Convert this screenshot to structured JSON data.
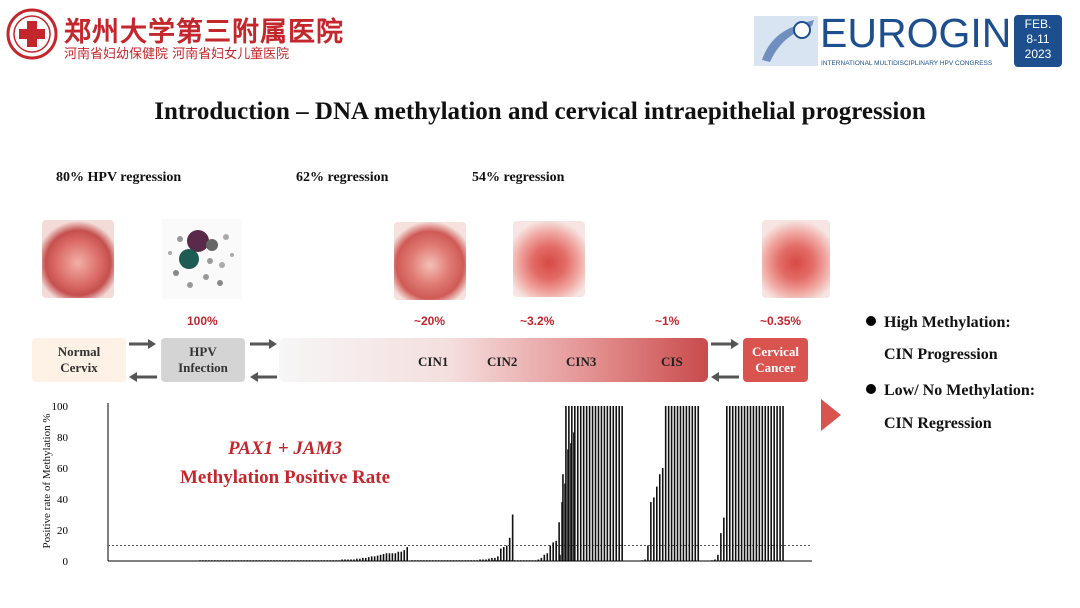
{
  "header": {
    "institution": "郑州大学第三附属医院",
    "institution_sub": "河南省妇幼保健院  河南省妇女儿童医院",
    "conference": "EUROGIN",
    "conference_sub": "INTERNATIONAL MULTIDISCIPLINARY HPV CONGRESS",
    "date_line1": "FEB.",
    "date_line2": "8-11",
    "date_line3": "2023"
  },
  "title": "Introduction – DNA methylation and cervical intraepithelial progression",
  "regressions": {
    "hpv": "80% HPV regression",
    "cin1": "62% regression",
    "cin2": "54% regression"
  },
  "progression_rates": {
    "hpv": "100%",
    "cin1": "~20%",
    "cin2": "~3.2%",
    "cis": "~1%",
    "cancer": "~0.35%"
  },
  "stages": {
    "normal": [
      "Normal",
      "Cervix"
    ],
    "hpv": [
      "HPV",
      "Infection"
    ],
    "cin1": "CIN1",
    "cin2": "CIN2",
    "cin3": "CIN3",
    "cis": "CIS",
    "cancer": [
      "Cervical",
      "Cancer"
    ]
  },
  "legend": {
    "high_label": "High Methylation:",
    "high_value": "CIN Progression",
    "low_label": "Low/ No Methylation:",
    "low_value": "CIN Regression"
  },
  "colors": {
    "accent_red": "#c3262b",
    "brand_blue": "#1d4f8f",
    "cancer_box": "#d9534f"
  },
  "chart_data": {
    "type": "bar",
    "title_line1": "PAX1 + JAM3",
    "title_line2": "Methylation  Positive Rate",
    "ylabel": "Positive rate of Methylation %",
    "yticks": [
      "100",
      "80",
      "60",
      "40",
      "20",
      "0"
    ],
    "ylim": [
      0,
      100
    ],
    "threshold": 10,
    "series": [
      {
        "group": "normal",
        "values": [
          0.5,
          0.5,
          0.5,
          0.5,
          0.5,
          0.5,
          0.5,
          0.5,
          0.5,
          0.5,
          0.5,
          0.5,
          0.5,
          0.5,
          0.5,
          0.5,
          0.5,
          0.5,
          0.5,
          0.5,
          0.5,
          0.5,
          0.5,
          0.5,
          0.5,
          0.5,
          0.5,
          0.5,
          0.5,
          0.5,
          0.5,
          0.5,
          0.5,
          0.5,
          0.5,
          0.5,
          0.5,
          0.5,
          0.5,
          0.5,
          0.5,
          0.5,
          0.5,
          0.5,
          0.5,
          0.5,
          0.5,
          0.5,
          1,
          1,
          1,
          1,
          1,
          1.5,
          1.5,
          2,
          2,
          2.5,
          3,
          3,
          3.5,
          4,
          4.5,
          5,
          5,
          5,
          5,
          6,
          6,
          7,
          9
        ]
      },
      {
        "group": "cin1",
        "values": [
          0.5,
          0.5,
          0.5,
          0.5,
          0.5,
          0.5,
          0.5,
          0.5,
          0.5,
          0.5,
          0.5,
          0.5,
          0.5,
          0.5,
          0.5,
          0.5,
          0.5,
          0.5,
          0.5,
          0.5,
          0.5,
          0.5,
          0.5,
          1,
          1,
          1,
          1.5,
          2,
          2,
          3,
          8,
          9,
          10,
          15,
          30
        ]
      },
      {
        "group": "cin2",
        "values": [
          0.5,
          0.5,
          0.5,
          0.5,
          0.5,
          0.5,
          0.5,
          0.5,
          0.5,
          0.5,
          0.5,
          0.5,
          0.5,
          0.5,
          0.5,
          1,
          2,
          4,
          5,
          10,
          12,
          13,
          25,
          38,
          50,
          72,
          76,
          83
        ]
      },
      {
        "group": "cin3",
        "values": [
          4,
          56,
          100,
          100,
          100,
          100,
          100,
          100,
          100,
          100,
          100,
          100,
          100,
          100,
          100,
          100,
          100,
          100,
          100,
          100,
          100,
          100
        ]
      },
      {
        "group": "cis",
        "values": [
          0.5,
          1,
          10,
          38,
          41,
          48,
          56,
          60,
          100,
          100,
          100,
          100,
          100,
          100,
          100,
          100,
          100,
          100,
          100,
          100
        ]
      },
      {
        "group": "cancer",
        "values": [
          0.5,
          1,
          4,
          18,
          28,
          100,
          100,
          100,
          100,
          100,
          100,
          100,
          100,
          100,
          100,
          100,
          100,
          100,
          100,
          100,
          100,
          100,
          100,
          100,
          100
        ]
      }
    ]
  }
}
